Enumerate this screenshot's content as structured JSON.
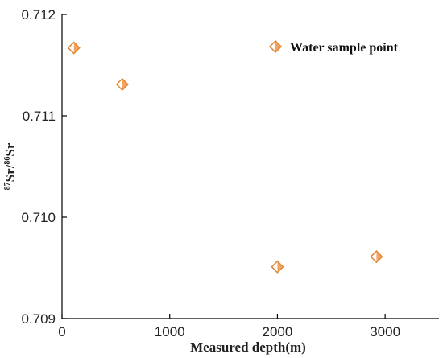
{
  "colors": {
    "marker": "#F5A45F",
    "marker_stroke": "#E08A3C",
    "axis": "#000000"
  },
  "chart_data": {
    "type": "scatter",
    "title": "",
    "xlabel": "Measured depth(m)",
    "ylabel": {
      "sup1": "87",
      "t1": "Sr/",
      "sup2": "86",
      "t2": "Sr"
    },
    "xlim": [
      0,
      3500
    ],
    "ylim": [
      0.709,
      0.712
    ],
    "xticks": [
      0,
      1000,
      2000,
      3000
    ],
    "yticks": [
      0.709,
      0.71,
      0.711,
      0.712
    ],
    "xtick_labels": [
      "0",
      "1000",
      "2000",
      "3000"
    ],
    "ytick_labels": [
      "0.709",
      "0.710",
      "0.711",
      "0.712"
    ],
    "grid": false,
    "legend_position": "top-right",
    "series": [
      {
        "name": "Water sample point",
        "marker": "half-filled-diamond",
        "x": [
          110,
          560,
          2000,
          2920
        ],
        "y": [
          0.71167,
          0.71131,
          0.70951,
          0.70961
        ]
      }
    ]
  }
}
